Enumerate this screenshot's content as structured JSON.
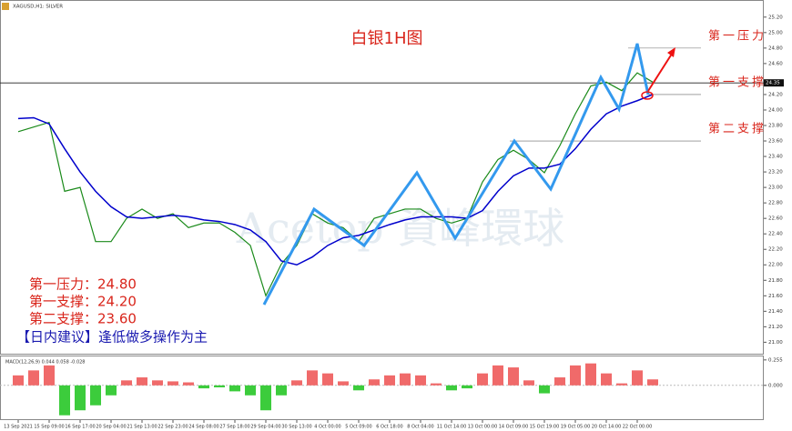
{
  "chart_data": [
    {
      "type": "line",
      "header": "XAGUSD,H1: SILVER",
      "title": "白银1H图",
      "watermark": "Acetop 資峰環球",
      "categories": [
        "13 Sep 2021",
        null,
        "15 Sep 09:00",
        null,
        "16 Sep 17:00",
        null,
        "20 Sep 04:00",
        null,
        "21 Sep 13:00",
        null,
        "22 Sep 23:00",
        null,
        "24 Sep 08:00",
        null,
        "27 Sep 18:00",
        null,
        "29 Sep 04:00",
        null,
        "30 Sep 13:00",
        null,
        "4 Oct 00:00",
        null,
        "5 Oct 09:00",
        null,
        "6 Oct 18:00",
        null,
        "8 Oct 04:00",
        null,
        "11 Oct 14:00",
        null,
        "13 Oct 00:00",
        null,
        "14 Oct 09:00",
        null,
        "15 Oct 19:00",
        null,
        "19 Oct 05:00",
        null,
        "20 Oct 14:00",
        null,
        "22 Oct 00:00",
        null
      ],
      "series": [
        {
          "color": "#1a8a1a",
          "values": [
            23.72,
            23.78,
            23.84,
            22.95,
            23.0,
            22.3,
            22.3,
            22.6,
            22.72,
            22.6,
            22.66,
            22.48,
            22.54,
            22.54,
            22.42,
            22.25,
            21.6,
            22.01,
            22.25,
            22.66,
            22.54,
            22.48,
            22.3,
            22.6,
            22.66,
            22.72,
            22.72,
            22.6,
            22.54,
            22.6,
            23.07,
            23.36,
            23.48,
            23.36,
            23.19,
            23.54,
            23.95,
            24.31,
            24.36,
            24.25,
            24.48,
            24.36
          ]
        },
        {
          "color": "#0000cc",
          "values": [
            23.89,
            23.9,
            23.82,
            23.5,
            23.2,
            22.95,
            22.75,
            22.62,
            22.6,
            22.62,
            22.64,
            22.62,
            22.58,
            22.56,
            22.52,
            22.45,
            22.3,
            22.05,
            22.0,
            22.1,
            22.25,
            22.35,
            22.38,
            22.45,
            22.52,
            22.58,
            22.62,
            22.62,
            22.62,
            22.6,
            22.7,
            22.95,
            23.15,
            23.25,
            23.25,
            23.3,
            23.5,
            23.75,
            23.95,
            24.05,
            24.12,
            24.2
          ]
        }
      ],
      "current_price": {
        "value": 24.35,
        "label": "24.35"
      },
      "levels": [
        {
          "label": "第一压力",
          "value": 24.8
        },
        {
          "label": "第一支撑",
          "value": 24.2
        },
        {
          "label": "第二支撑",
          "value": 23.6
        }
      ],
      "notes": [
        "第一压力：24.80",
        "第一支撑：24.20",
        "第二支撑：23.60",
        "【日内建议】逢低做多操作为主"
      ],
      "ylim": [
        20.84,
        25.28
      ],
      "yticks": [
        {
          "value": 25.2,
          "label": "25.20"
        },
        {
          "value": 25.0,
          "label": "25.00"
        },
        {
          "value": 24.8,
          "label": "24.80"
        },
        {
          "value": 24.6,
          "label": "24.60"
        },
        {
          "value": 24.2,
          "label": "24.20"
        },
        {
          "value": 24.0,
          "label": "24.00"
        },
        {
          "value": 23.8,
          "label": "23.80"
        },
        {
          "value": 23.6,
          "label": "23.60"
        },
        {
          "value": 23.4,
          "label": "23.40"
        },
        {
          "value": 23.2,
          "label": "23.20"
        },
        {
          "value": 23.0,
          "label": "23.00"
        },
        {
          "value": 22.8,
          "label": "22.80"
        },
        {
          "value": 22.6,
          "label": "22.60"
        },
        {
          "value": 22.4,
          "label": "22.40"
        },
        {
          "value": 22.2,
          "label": "22.20"
        },
        {
          "value": 22.0,
          "label": "22.00"
        },
        {
          "value": 21.8,
          "label": "21.80"
        },
        {
          "value": 21.6,
          "label": "21.60"
        },
        {
          "value": 21.4,
          "label": "21.40"
        },
        {
          "value": 21.2,
          "label": "21.20"
        },
        {
          "value": 21.0,
          "label": "21.00"
        }
      ]
    },
    {
      "type": "bar",
      "title": "MACD(12,26,9) 0.044 0.058 -0.028",
      "positive_color": "#f06a6a",
      "negative_color": "#3ccc3c",
      "values": [
        0.1,
        0.15,
        0.2,
        -0.3,
        -0.25,
        -0.2,
        -0.1,
        0.05,
        0.08,
        0.05,
        0.04,
        0.03,
        -0.03,
        -0.02,
        -0.06,
        -0.1,
        -0.25,
        -0.1,
        0.05,
        0.15,
        0.12,
        0.04,
        -0.05,
        0.06,
        0.1,
        0.12,
        0.1,
        0.02,
        -0.05,
        -0.03,
        0.12,
        0.2,
        0.18,
        0.05,
        -0.08,
        0.08,
        0.2,
        0.22,
        0.12,
        0.02,
        0.15,
        0.06
      ],
      "ylim": [
        -0.33,
        0.29
      ],
      "yticks": [
        0.255,
        {
          "value": 0,
          "label": "0.000"
        }
      ]
    }
  ]
}
